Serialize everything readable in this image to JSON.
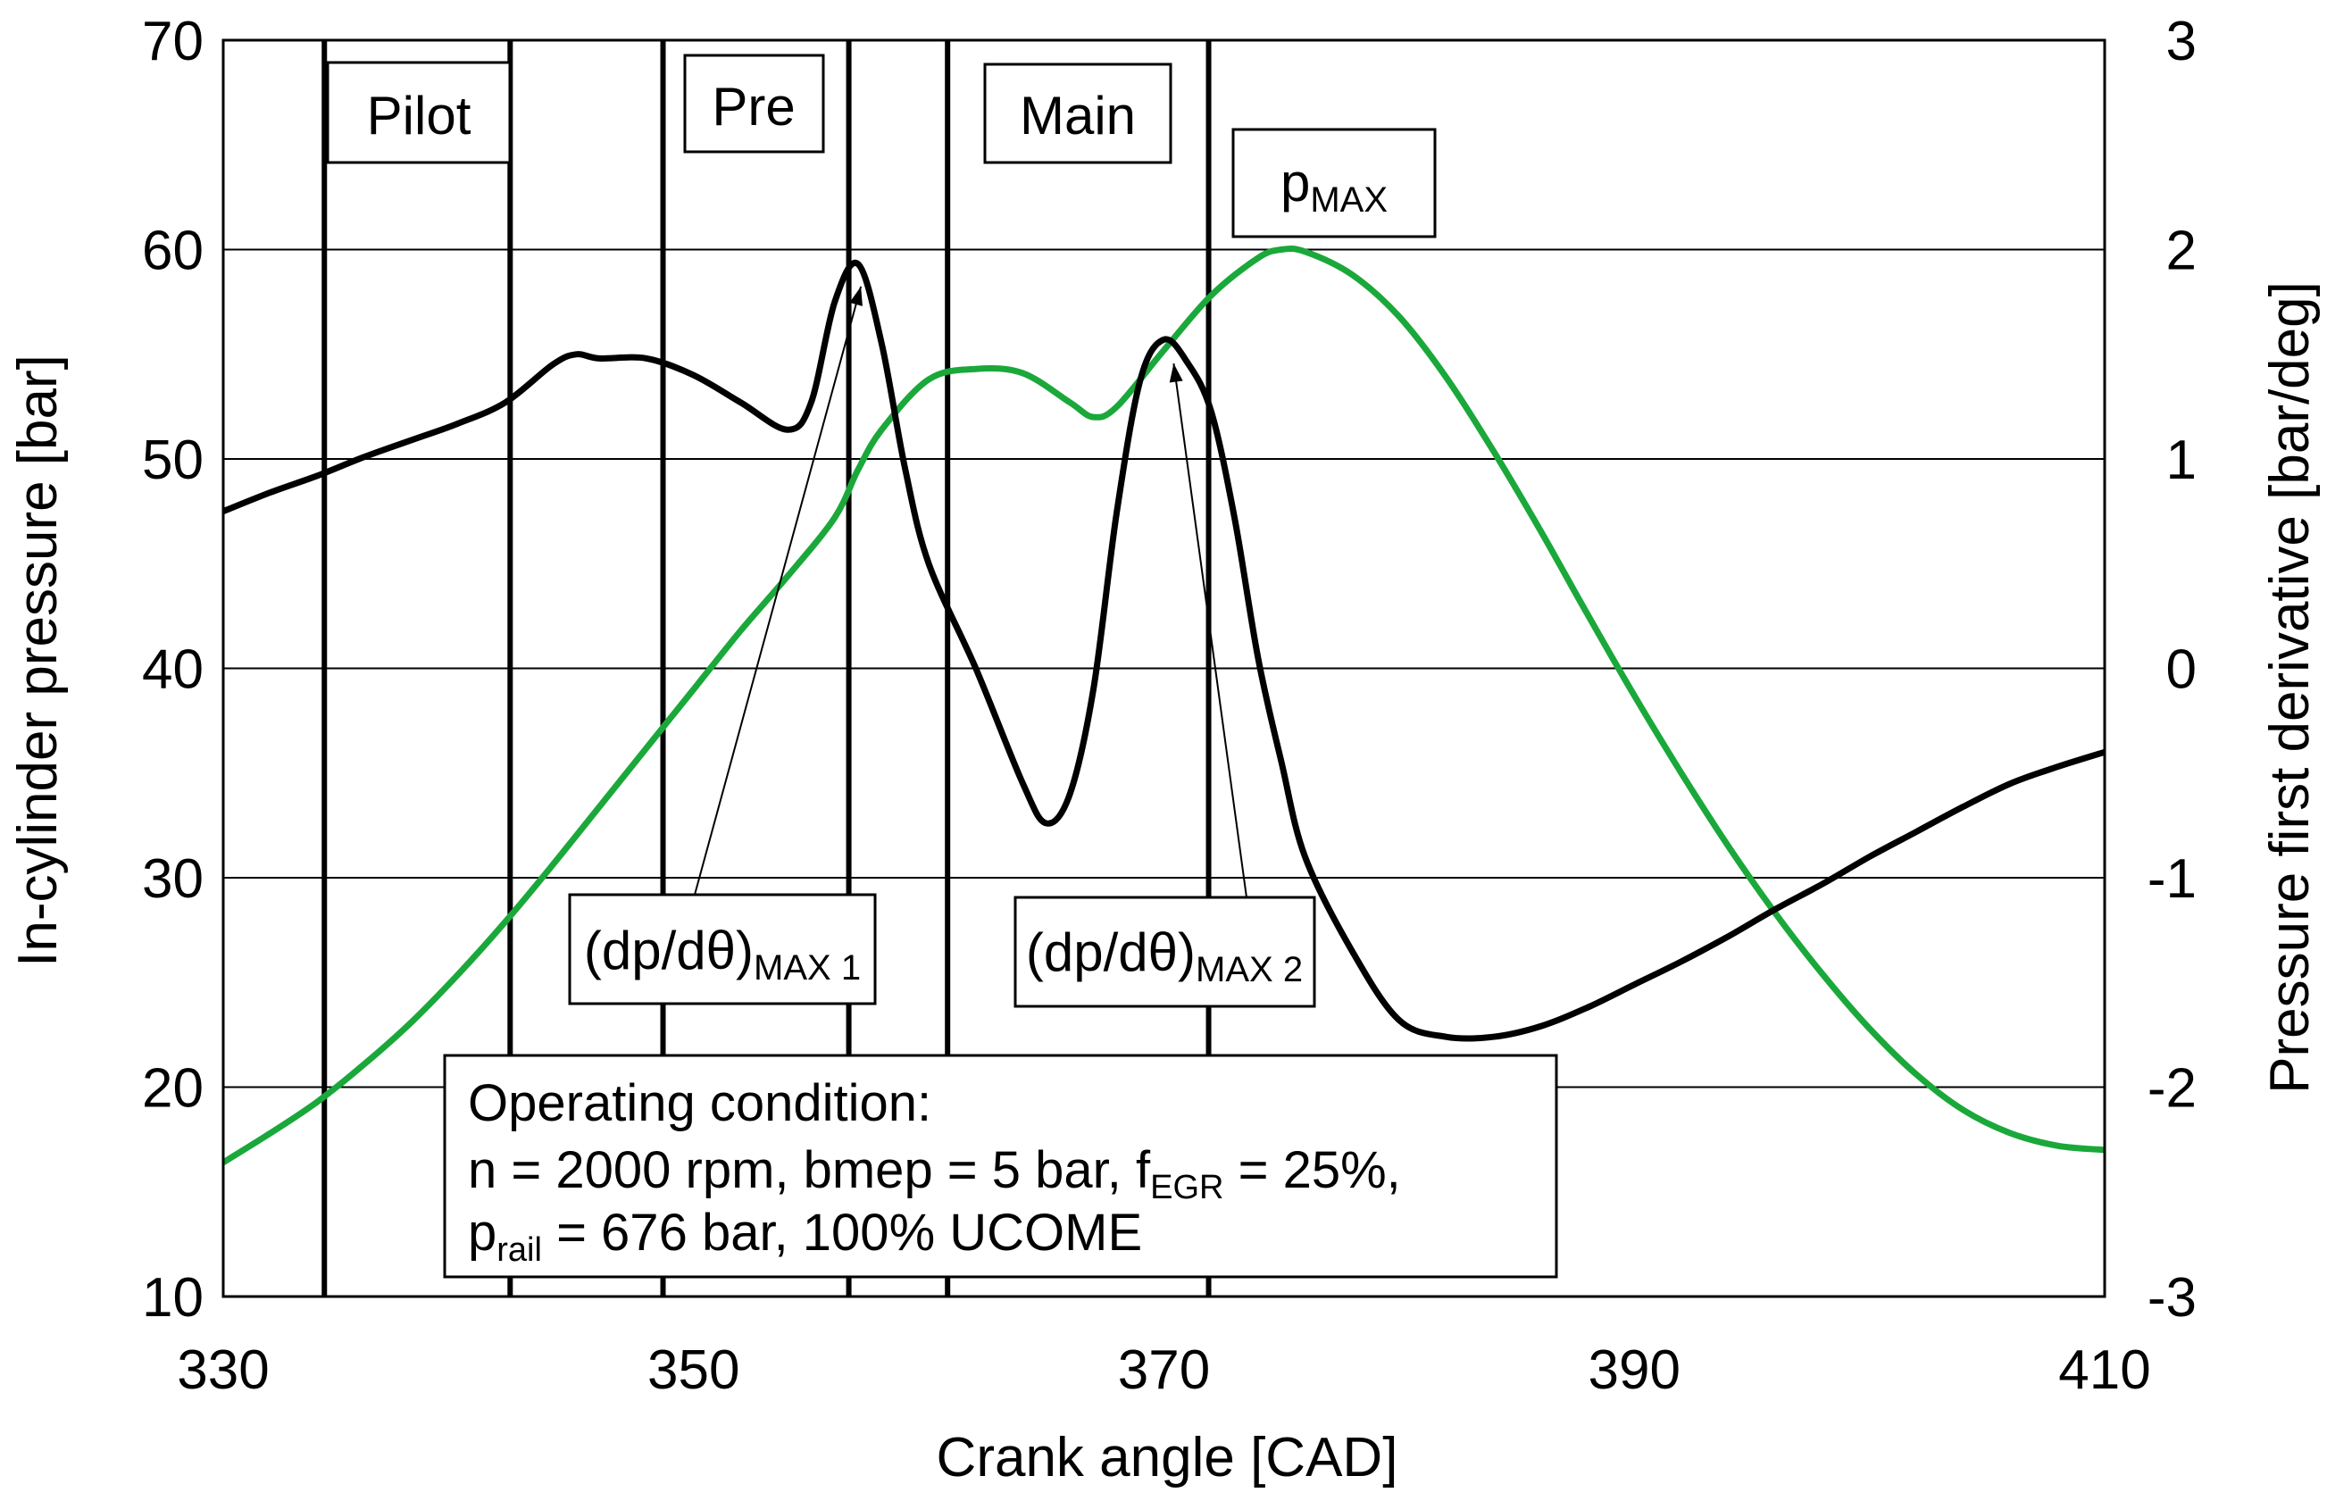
{
  "chart_data": {
    "type": "line",
    "title": "",
    "xlabel": "Crank angle [CAD]",
    "ylabel_left": "In-cylinder pressure [bar]",
    "ylabel_right": "Pressure first derivative [bar/deg]",
    "xlim": [
      330,
      410
    ],
    "ylim_left": [
      10,
      70
    ],
    "ylim_right": [
      -3,
      3
    ],
    "x_ticks": [
      "330",
      "350",
      "370",
      "390",
      "410"
    ],
    "x_tick_values": [
      330,
      350,
      370,
      390,
      410
    ],
    "y_left_ticks": [
      "10",
      "20",
      "30",
      "40",
      "50",
      "60",
      "70"
    ],
    "y_left_tick_values": [
      10,
      20,
      30,
      40,
      50,
      60,
      70
    ],
    "y_right_ticks": [
      "-3",
      "-2",
      "-1",
      "0",
      "1",
      "2",
      "3"
    ],
    "y_right_tick_values": [
      -3,
      -2,
      -1,
      0,
      1,
      2,
      3
    ],
    "grid": "horizontal",
    "series": [
      {
        "name": "In-cylinder pressure",
        "axis": "left",
        "color": "#1aa83a",
        "x": [
          330,
          332,
          334,
          336,
          338,
          340,
          342,
          344,
          346,
          348,
          350,
          352,
          354,
          356,
          357,
          358,
          360,
          362,
          364,
          366,
          367,
          368,
          370,
          372,
          374,
          375,
          376,
          378,
          380,
          382,
          384,
          386,
          388,
          390,
          392,
          394,
          396,
          398,
          400,
          402,
          404,
          406,
          408,
          410
        ],
        "y": [
          16.4,
          17.8,
          19.3,
          21.1,
          23.1,
          25.4,
          27.9,
          30.6,
          33.4,
          36.2,
          39.0,
          41.8,
          44.4,
          47.2,
          49.5,
          51.4,
          53.8,
          54.3,
          54.1,
          52.7,
          52.0,
          52.5,
          55.2,
          57.8,
          59.6,
          60.0,
          59.9,
          58.8,
          56.8,
          53.9,
          50.4,
          46.6,
          42.6,
          38.7,
          35.0,
          31.5,
          28.3,
          25.4,
          22.8,
          20.6,
          18.9,
          17.8,
          17.2,
          17.0
        ]
      },
      {
        "name": "Pressure first derivative",
        "axis": "right",
        "color": "#000000",
        "x": [
          330,
          332,
          334,
          336,
          338,
          340,
          342,
          344,
          345,
          346,
          348,
          350,
          352,
          354,
          355,
          356,
          357,
          358,
          359,
          360,
          362,
          364,
          365,
          366,
          367,
          368,
          369,
          370,
          371,
          372,
          373,
          374,
          375,
          376,
          378,
          380,
          382,
          384,
          386,
          388,
          390,
          392,
          394,
          396,
          398,
          400,
          402,
          404,
          406,
          408,
          410
        ],
        "y": [
          0.75,
          0.84,
          0.92,
          1.01,
          1.09,
          1.17,
          1.27,
          1.45,
          1.5,
          1.48,
          1.48,
          1.4,
          1.27,
          1.14,
          1.27,
          1.75,
          1.93,
          1.55,
          0.95,
          0.5,
          0.0,
          -0.55,
          -0.74,
          -0.6,
          -0.1,
          0.75,
          1.38,
          1.57,
          1.46,
          1.23,
          0.72,
          0.05,
          -0.45,
          -0.9,
          -1.35,
          -1.68,
          -1.76,
          -1.76,
          -1.71,
          -1.62,
          -1.51,
          -1.4,
          -1.28,
          -1.15,
          -1.03,
          -0.9,
          -0.78,
          -0.66,
          -0.55,
          -0.47,
          -0.4
        ]
      }
    ],
    "injection_markers": [
      {
        "label": "Pilot",
        "start": 334.3,
        "end": 342.2
      },
      {
        "label": "Pre",
        "start": 348.7,
        "end": 356.6
      },
      {
        "label": "Main",
        "start": 360.8,
        "end": 371.9
      }
    ],
    "annotations": [
      {
        "id": "pmax",
        "text": "p",
        "sub": "MAX"
      },
      {
        "id": "dpmax1",
        "text": "(dp/dθ)",
        "sub": "MAX 1",
        "target_x": 357.0,
        "target_y_right": 1.93
      },
      {
        "id": "dpmax2",
        "text": "(dp/dθ)",
        "sub": "MAX 2",
        "target_x": 370.3,
        "target_y_right": 1.52
      }
    ],
    "operating_condition": {
      "line1": "Operating condition:",
      "line2_a": "n = 2000 rpm, bmep = 5 bar, f",
      "line2_sub": "EGR",
      "line2_b": " = 25%,",
      "line3_a": "p",
      "line3_sub": "rail",
      "line3_b": " = 676 bar, 100% UCOME"
    }
  }
}
